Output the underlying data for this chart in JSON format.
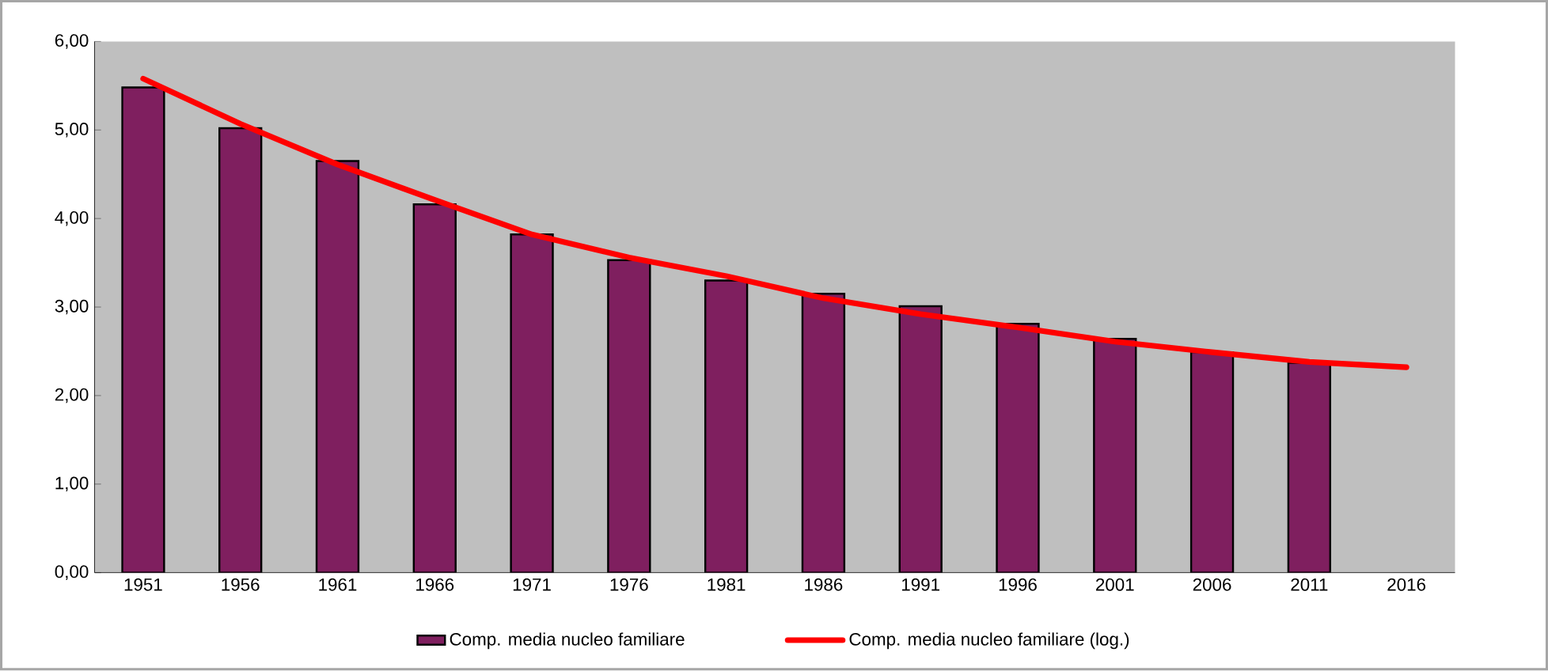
{
  "chart_data": {
    "type": "bar",
    "categories": [
      "1951",
      "1956",
      "1961",
      "1966",
      "1971",
      "1976",
      "1981",
      "1986",
      "1991",
      "1996",
      "2001",
      "2006",
      "2011",
      "2016"
    ],
    "series": [
      {
        "name": "Comp. media nucleo familiare",
        "color": "#7f1f5f",
        "values": [
          5.48,
          5.02,
          4.65,
          4.16,
          3.82,
          3.53,
          3.3,
          3.15,
          3.01,
          2.81,
          2.64,
          2.49,
          2.37,
          null
        ]
      },
      {
        "name": "Comp. media nucleo familiare (log.)",
        "type": "line",
        "color": "#ff0000",
        "values": [
          5.58,
          5.07,
          4.61,
          4.21,
          3.82,
          3.56,
          3.35,
          3.1,
          2.92,
          2.77,
          2.61,
          2.49,
          2.38,
          2.32
        ]
      }
    ],
    "ylim": [
      0,
      6
    ],
    "yticks": [
      {
        "value": 0,
        "label": "0,00"
      },
      {
        "value": 1,
        "label": "1,00"
      },
      {
        "value": 2,
        "label": "2,00"
      },
      {
        "value": 3,
        "label": "3,00"
      },
      {
        "value": 4,
        "label": "4,00"
      },
      {
        "value": 5,
        "label": "5,00"
      },
      {
        "value": 6,
        "label": "6,00"
      }
    ],
    "grid": false,
    "legend": "bottom",
    "marker": "none",
    "line_style": "solid"
  }
}
